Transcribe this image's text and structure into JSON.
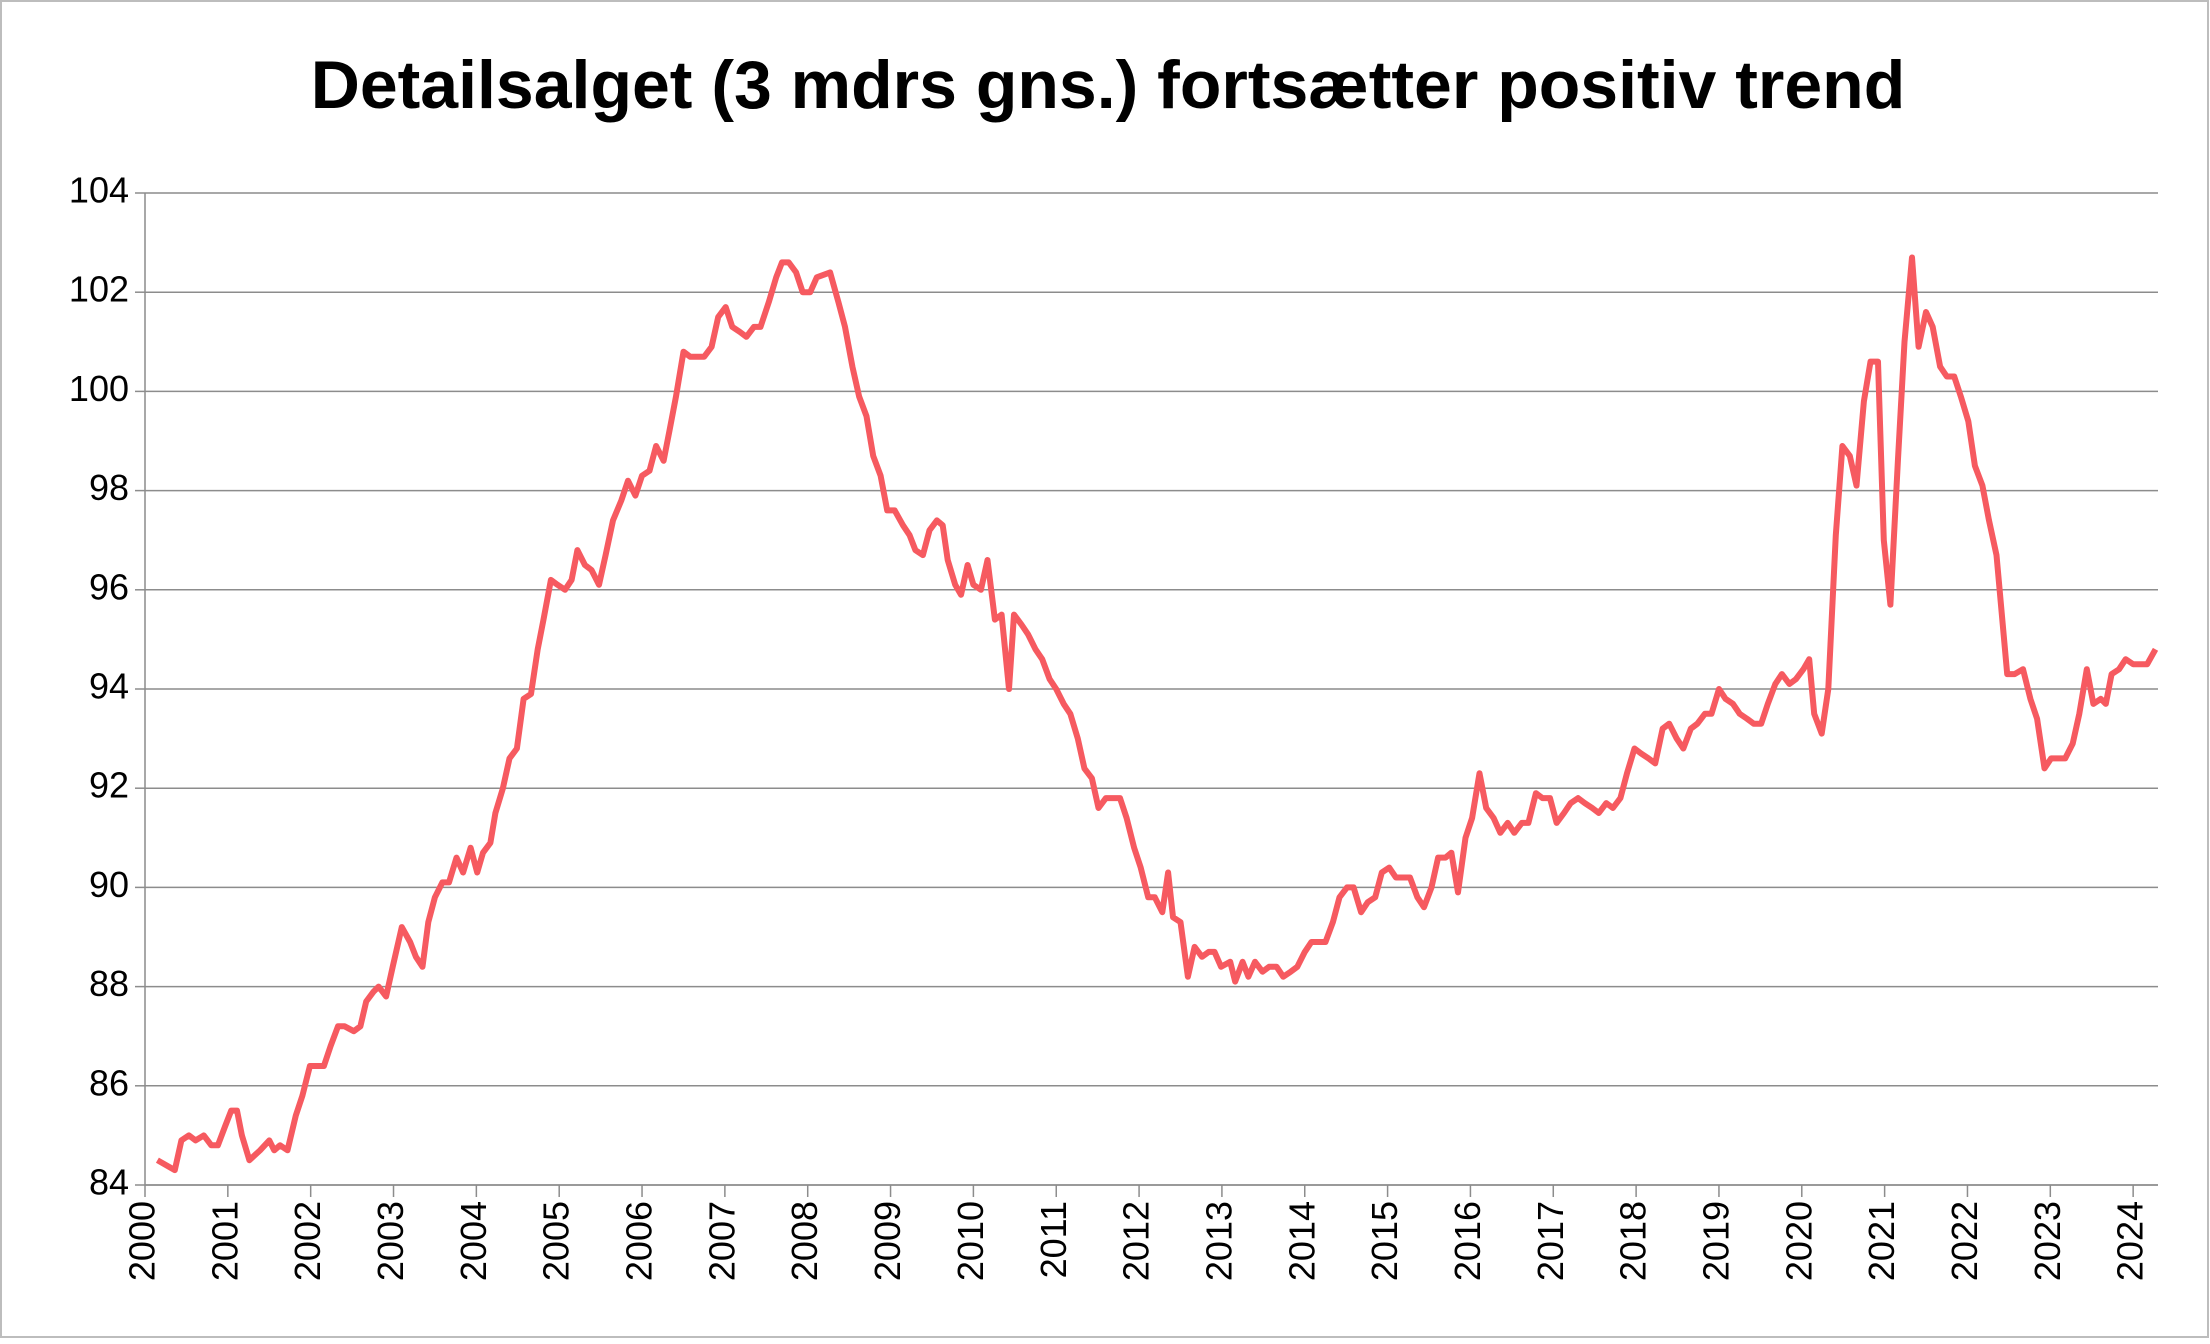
{
  "chart_data": {
    "type": "line",
    "title": "Detailsalget (3 mdrs gns.) fortsætter positiv trend",
    "x": [
      2000.15,
      2000.36,
      2000.44,
      2000.53,
      2000.61,
      2000.71,
      2000.8,
      2000.88,
      2000.97,
      2001.04,
      2001.11,
      2001.17,
      2001.26,
      2001.39,
      2001.5,
      2001.56,
      2001.63,
      2001.72,
      2001.82,
      2001.9,
      2001.99,
      2002.06,
      2002.16,
      2002.24,
      2002.33,
      2002.41,
      2002.52,
      2002.6,
      2002.67,
      2002.76,
      2002.82,
      2002.91,
      2002.99,
      2003.1,
      2003.2,
      2003.27,
      2003.35,
      2003.42,
      2003.5,
      2003.59,
      2003.67,
      2003.76,
      2003.84,
      2003.93,
      2004.01,
      2004.08,
      2004.17,
      2004.23,
      2004.32,
      2004.4,
      2004.49,
      2004.57,
      2004.66,
      2004.74,
      2004.81,
      2004.9,
      2004.98,
      2005.07,
      2005.15,
      2005.22,
      2005.31,
      2005.39,
      2005.48,
      2005.56,
      2005.65,
      2005.75,
      2005.83,
      2005.92,
      2006.0,
      2006.09,
      2006.17,
      2006.26,
      2006.33,
      2006.41,
      2006.5,
      2006.58,
      2006.67,
      2006.75,
      2006.84,
      2006.92,
      2007.01,
      2007.09,
      2007.18,
      2007.26,
      2007.35,
      2007.43,
      2007.53,
      2007.62,
      2007.69,
      2007.77,
      2007.86,
      2007.94,
      2008.03,
      2008.11,
      2008.27,
      2008.37,
      2008.45,
      2008.54,
      2008.62,
      2008.71,
      2008.79,
      2008.88,
      2008.96,
      2009.05,
      2009.15,
      2009.23,
      2009.3,
      2009.39,
      2009.47,
      2009.56,
      2009.63,
      2009.69,
      2009.78,
      2009.85,
      2009.93,
      2010.0,
      2010.09,
      2010.17,
      2010.26,
      2010.34,
      2010.43,
      2010.49,
      2010.58,
      2010.66,
      2010.75,
      2010.83,
      2010.92,
      2011.0,
      2011.09,
      2011.17,
      2011.26,
      2011.34,
      2011.43,
      2011.51,
      2011.6,
      2011.68,
      2011.77,
      2011.85,
      2011.94,
      2012.02,
      2012.11,
      2012.19,
      2012.28,
      2012.35,
      2012.41,
      2012.5,
      2012.59,
      2012.67,
      2012.76,
      2012.84,
      2012.91,
      2012.99,
      2013.1,
      2013.16,
      2013.25,
      2013.32,
      2013.4,
      2013.49,
      2013.57,
      2013.66,
      2013.74,
      2013.83,
      2013.91,
      2014.0,
      2014.08,
      2014.17,
      2014.25,
      2014.34,
      2014.42,
      2014.51,
      2014.59,
      2014.68,
      2014.76,
      2014.85,
      2014.93,
      2015.02,
      2015.1,
      2015.19,
      2015.27,
      2015.36,
      2015.44,
      2015.53,
      2015.61,
      2015.7,
      2015.77,
      2015.85,
      2015.94,
      2016.02,
      2016.11,
      2016.19,
      2016.28,
      2016.36,
      2016.45,
      2016.53,
      2016.62,
      2016.7,
      2016.79,
      2016.87,
      2016.96,
      2017.04,
      2017.13,
      2017.21,
      2017.3,
      2017.38,
      2017.47,
      2017.55,
      2017.64,
      2017.72,
      2017.81,
      2017.89,
      2017.98,
      2018.06,
      2018.15,
      2018.23,
      2018.32,
      2018.4,
      2018.49,
      2018.57,
      2018.66,
      2018.74,
      2018.83,
      2018.91,
      2019.0,
      2019.08,
      2019.17,
      2019.25,
      2019.34,
      2019.42,
      2019.51,
      2019.59,
      2019.68,
      2019.76,
      2019.85,
      2019.93,
      2020.02,
      2020.09,
      2020.15,
      2020.24,
      2020.32,
      2020.41,
      2020.49,
      2020.58,
      2020.66,
      2020.75,
      2020.83,
      2020.92,
      2020.99,
      2021.07,
      2021.16,
      2021.24,
      2021.33,
      2021.41,
      2021.5,
      2021.58,
      2021.67,
      2021.75,
      2021.84,
      2021.92,
      2022.01,
      2022.09,
      2022.18,
      2022.26,
      2022.35,
      2022.41,
      2022.48,
      2022.57,
      2022.67,
      2022.76,
      2022.84,
      2022.93,
      2023.01,
      2023.1,
      2023.18,
      2023.27,
      2023.35,
      2023.44,
      2023.52,
      2023.61,
      2023.67,
      2023.74,
      2023.83,
      2023.91,
      2024.0,
      2024.08,
      2024.17,
      2024.27
    ],
    "series": [
      {
        "color": "#f65a60",
        "values": [
          84.5,
          84.3,
          84.9,
          85.0,
          84.9,
          85.0,
          84.8,
          84.8,
          85.2,
          85.5,
          85.5,
          85.0,
          84.5,
          84.7,
          84.9,
          84.7,
          84.8,
          84.7,
          85.4,
          85.8,
          86.4,
          86.4,
          86.4,
          86.8,
          87.2,
          87.2,
          87.1,
          87.2,
          87.7,
          87.9,
          88.0,
          87.8,
          88.4,
          89.2,
          88.9,
          88.6,
          88.4,
          89.3,
          89.8,
          90.1,
          90.1,
          90.6,
          90.3,
          90.8,
          90.3,
          90.7,
          90.9,
          91.5,
          92.0,
          92.6,
          92.8,
          93.8,
          93.9,
          94.8,
          95.4,
          96.2,
          96.1,
          96.0,
          96.2,
          96.8,
          96.5,
          96.4,
          96.1,
          96.7,
          97.4,
          97.8,
          98.2,
          97.9,
          98.3,
          98.4,
          98.9,
          98.6,
          99.2,
          99.9,
          100.8,
          100.7,
          100.7,
          100.7,
          100.9,
          101.5,
          101.7,
          101.3,
          101.2,
          101.1,
          101.3,
          101.3,
          101.8,
          102.3,
          102.6,
          102.6,
          102.4,
          102.0,
          102.0,
          102.3,
          102.4,
          101.8,
          101.3,
          100.5,
          99.9,
          99.5,
          98.7,
          98.3,
          97.6,
          97.6,
          97.3,
          97.1,
          96.8,
          96.7,
          97.2,
          97.4,
          97.3,
          96.6,
          96.1,
          95.9,
          96.5,
          96.1,
          96.0,
          96.6,
          95.4,
          95.5,
          94.0,
          95.5,
          95.3,
          95.1,
          94.8,
          94.6,
          94.2,
          94.0,
          93.7,
          93.5,
          93.0,
          92.4,
          92.2,
          91.6,
          91.8,
          91.8,
          91.8,
          91.4,
          90.8,
          90.4,
          89.8,
          89.8,
          89.5,
          90.3,
          89.4,
          89.3,
          88.2,
          88.8,
          88.6,
          88.7,
          88.7,
          88.4,
          88.5,
          88.1,
          88.5,
          88.2,
          88.5,
          88.3,
          88.4,
          88.4,
          88.2,
          88.3,
          88.4,
          88.7,
          88.9,
          88.9,
          88.9,
          89.3,
          89.8,
          90.0,
          90.0,
          89.5,
          89.7,
          89.8,
          90.3,
          90.4,
          90.2,
          90.2,
          90.2,
          89.8,
          89.6,
          90.0,
          90.6,
          90.6,
          90.7,
          89.9,
          91.0,
          91.4,
          92.3,
          91.6,
          91.4,
          91.1,
          91.3,
          91.1,
          91.3,
          91.3,
          91.9,
          91.8,
          91.8,
          91.3,
          91.5,
          91.7,
          91.8,
          91.7,
          91.6,
          91.5,
          91.7,
          91.6,
          91.8,
          92.3,
          92.8,
          92.7,
          92.6,
          92.5,
          93.2,
          93.3,
          93.0,
          92.8,
          93.2,
          93.3,
          93.5,
          93.5,
          94.0,
          93.8,
          93.7,
          93.5,
          93.4,
          93.3,
          93.3,
          93.7,
          94.1,
          94.3,
          94.1,
          94.2,
          94.4,
          94.6,
          93.5,
          93.1,
          94.0,
          97.1,
          98.9,
          98.7,
          98.1,
          99.8,
          100.6,
          100.6,
          97.0,
          95.7,
          98.6,
          101.0,
          102.7,
          100.9,
          101.6,
          101.3,
          100.5,
          100.3,
          100.3,
          99.9,
          99.4,
          98.5,
          98.1,
          97.4,
          96.7,
          95.6,
          94.3,
          94.3,
          94.4,
          93.8,
          93.4,
          92.4,
          92.6,
          92.6,
          92.6,
          92.9,
          93.5,
          94.4,
          93.7,
          93.8,
          93.7,
          94.3,
          94.4,
          94.6,
          94.5,
          94.5,
          94.5,
          94.8
        ]
      }
    ],
    "xlim": [
      2000,
      2024.3
    ],
    "xticks": [
      2000,
      2001,
      2002,
      2003,
      2004,
      2005,
      2006,
      2007,
      2008,
      2009,
      2010,
      2011,
      2012,
      2013,
      2014,
      2015,
      2016,
      2017,
      2018,
      2019,
      2020,
      2021,
      2022,
      2023,
      2024
    ],
    "ylim": [
      84,
      104
    ],
    "yticks": [
      84,
      86,
      88,
      90,
      92,
      94,
      96,
      98,
      100,
      102,
      104
    ],
    "grid": true
  }
}
